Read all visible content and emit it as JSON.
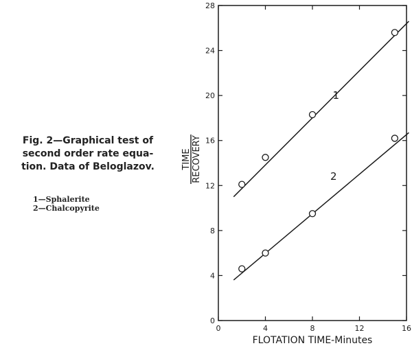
{
  "caption": {
    "lines": [
      "Fig. 2—Graphical test of",
      "second order rate equa-",
      "tion. Data of Beloglazov."
    ]
  },
  "legend": {
    "entries": [
      "1—Sphalerite",
      "2—Chalcopyrite"
    ]
  },
  "chart_data": {
    "type": "scatter",
    "title": "",
    "xlabel": "FLOTATION TIME-Minutes",
    "ylabel_numerator": "TIME",
    "ylabel_denominator": "RECOVERY",
    "xlim": [
      0,
      16
    ],
    "ylim": [
      0,
      28
    ],
    "xticks": [
      0,
      4,
      8,
      12,
      16
    ],
    "yticks": [
      0,
      4,
      8,
      12,
      16,
      20,
      24,
      28
    ],
    "grid": false,
    "series": [
      {
        "name": "1",
        "x": [
          2,
          4,
          8,
          15
        ],
        "y": [
          12.1,
          14.5,
          18.3,
          25.6
        ],
        "fit": {
          "x": [
            1.3,
            16.2
          ],
          "y": [
            11.0,
            26.6
          ]
        }
      },
      {
        "name": "2",
        "x": [
          2,
          4,
          8,
          15
        ],
        "y": [
          4.6,
          6.0,
          9.5,
          16.2
        ],
        "fit": {
          "x": [
            1.3,
            16.2
          ],
          "y": [
            3.6,
            16.7
          ]
        }
      }
    ]
  }
}
